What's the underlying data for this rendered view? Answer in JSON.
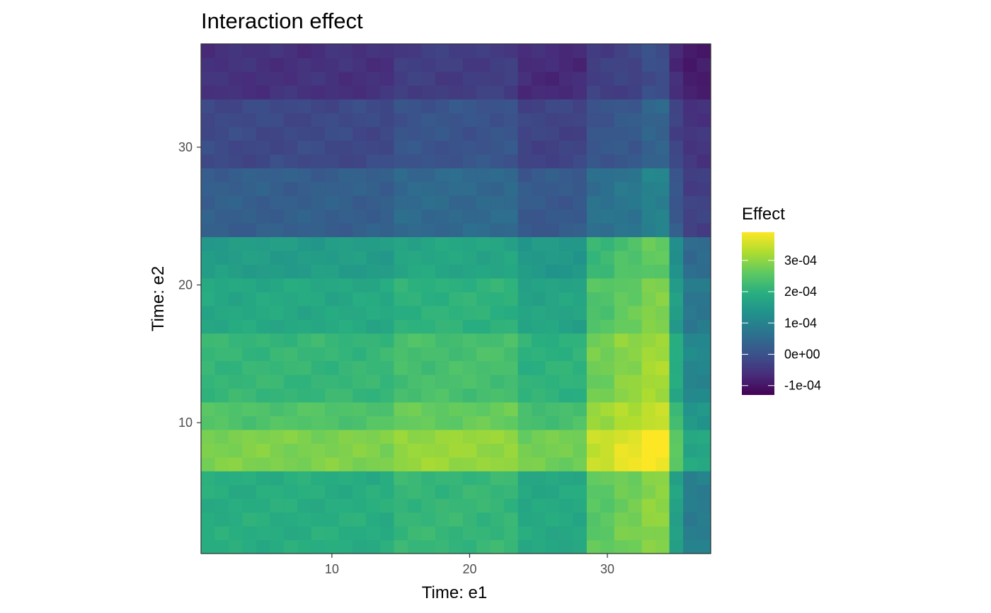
{
  "chart_data": {
    "type": "heatmap",
    "title": "Interaction effect",
    "xlabel": "Time: e1",
    "ylabel": "Time: e2",
    "xlim": [
      0.5,
      37.5
    ],
    "ylim": [
      0.5,
      37.5
    ],
    "x_ticks": [
      10,
      20,
      30
    ],
    "y_ticks": [
      10,
      20,
      30
    ],
    "x_tick_labels": [
      "10",
      "20",
      "30"
    ],
    "y_tick_labels": [
      "10",
      "20",
      "30"
    ],
    "grid": false,
    "legend": {
      "title": "Effect",
      "placement": "right",
      "range": [
        -0.00013,
        0.00039
      ],
      "breaks": [
        0.0003,
        0.0002,
        0.0001,
        0.0,
        -0.0001
      ],
      "labels": [
        "3e-04",
        "2e-04",
        "1e-04",
        "0e+00",
        "-1e-04"
      ]
    },
    "colormap": "viridis",
    "value_units": "effect",
    "row_bands": [
      {
        "from": 1,
        "to": 6,
        "level": 0.62
      },
      {
        "from": 7,
        "to": 9,
        "level": 0.8
      },
      {
        "from": 10,
        "to": 11,
        "level": 0.72
      },
      {
        "from": 12,
        "to": 16,
        "level": 0.66
      },
      {
        "from": 17,
        "to": 20,
        "level": 0.6
      },
      {
        "from": 21,
        "to": 23,
        "level": 0.55
      },
      {
        "from": 24,
        "to": 28,
        "level": 0.3
      },
      {
        "from": 29,
        "to": 33,
        "level": 0.22
      },
      {
        "from": 34,
        "to": 37,
        "level": 0.14
      }
    ],
    "col_bands": [
      {
        "from": 1,
        "to": 14,
        "offset": 0.0
      },
      {
        "from": 15,
        "to": 23,
        "offset": 0.04
      },
      {
        "from": 24,
        "to": 28,
        "offset": -0.02
      },
      {
        "from": 29,
        "to": 30,
        "offset": 0.12
      },
      {
        "from": 31,
        "to": 32,
        "offset": 0.16
      },
      {
        "from": 33,
        "to": 34,
        "offset": 0.2
      },
      {
        "from": 35,
        "to": 35,
        "offset": -0.05
      },
      {
        "from": 36,
        "to": 37,
        "offset": -0.2
      }
    ]
  }
}
